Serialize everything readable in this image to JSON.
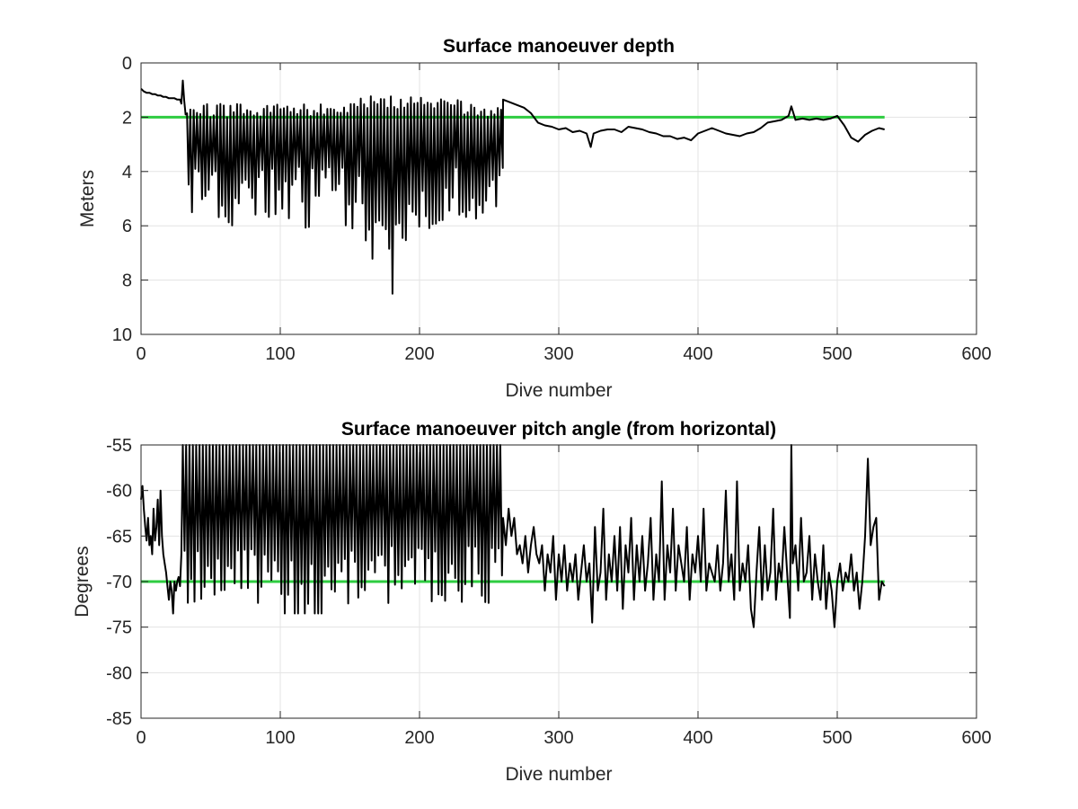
{
  "chart_data": [
    {
      "type": "line",
      "title": "Surface manoeuver depth",
      "xlabel": "Dive number",
      "ylabel": "Meters",
      "xlim": [
        0,
        600
      ],
      "ylim": [
        0,
        10
      ],
      "y_reversed": true,
      "grid": true,
      "x_ticks": [
        "0",
        "100",
        "200",
        "300",
        "400",
        "500",
        "600"
      ],
      "y_ticks": [
        "0",
        "2",
        "4",
        "6",
        "8",
        "10"
      ],
      "reference_line": {
        "y": 2,
        "color": "#2ecc40"
      },
      "series_color": "#000000",
      "segments": [
        {
          "x": [
            0,
            2,
            4,
            6,
            8,
            10,
            12,
            14,
            16,
            18,
            20,
            22,
            24,
            26,
            28,
            29,
            30,
            31,
            32
          ],
          "y": [
            0.95,
            1.05,
            1.1,
            1.1,
            1.15,
            1.15,
            1.2,
            1.2,
            1.25,
            1.25,
            1.3,
            1.3,
            1.3,
            1.35,
            1.35,
            1.5,
            0.65,
            1.4,
            1.9
          ]
        },
        {
          "x_start": 33,
          "x_end": 259,
          "period": 2.4,
          "mode": "oscillation",
          "top_base": 1.65,
          "bottom_base": 3.8,
          "notes": "dense alternating oscillation between ~1.5 m and 3.5–8.5 m; deepest near dive 179 (~8.5 m)"
        },
        {
          "x": [
            260,
            265,
            270,
            275,
            280,
            285,
            290,
            295,
            300,
            305,
            310,
            315,
            320,
            323,
            325,
            330,
            335,
            340,
            345,
            350,
            355,
            360,
            365,
            370,
            375,
            380,
            385,
            390,
            395,
            400,
            405,
            410,
            415,
            420,
            425,
            430,
            435,
            440,
            445,
            450,
            455,
            460,
            465,
            467,
            470,
            475,
            480,
            485,
            490,
            495,
            500,
            505,
            510,
            515,
            520,
            525,
            530,
            534
          ],
          "y": [
            1.35,
            1.45,
            1.55,
            1.65,
            1.85,
            2.2,
            2.3,
            2.35,
            2.45,
            2.4,
            2.55,
            2.5,
            2.6,
            3.1,
            2.6,
            2.5,
            2.45,
            2.45,
            2.55,
            2.35,
            2.4,
            2.45,
            2.55,
            2.6,
            2.7,
            2.7,
            2.8,
            2.75,
            2.85,
            2.6,
            2.5,
            2.4,
            2.5,
            2.6,
            2.65,
            2.7,
            2.6,
            2.55,
            2.4,
            2.2,
            2.15,
            2.1,
            1.95,
            1.6,
            2.1,
            2.05,
            2.1,
            2.05,
            2.1,
            2.05,
            1.95,
            2.3,
            2.75,
            2.9,
            2.65,
            2.5,
            2.4,
            2.45
          ]
        }
      ]
    },
    {
      "type": "line",
      "title": "Surface manoeuver pitch angle (from horizontal)",
      "xlabel": "Dive number",
      "ylabel": "Degrees",
      "xlim": [
        0,
        600
      ],
      "ylim": [
        -85,
        -55
      ],
      "grid": true,
      "x_ticks": [
        "0",
        "100",
        "200",
        "300",
        "400",
        "500",
        "600"
      ],
      "y_ticks": [
        "-55",
        "-60",
        "-65",
        "-70",
        "-75",
        "-80",
        "-85"
      ],
      "reference_line": {
        "y": -70,
        "color": "#2ecc40"
      },
      "series_color": "#000000",
      "segments": [
        {
          "x": [
            0,
            1,
            2,
            3,
            4,
            5,
            6,
            7,
            8,
            9,
            10,
            11,
            12,
            13,
            14,
            15,
            16,
            17,
            18,
            19,
            20,
            21,
            22,
            23,
            24,
            25,
            26,
            27,
            28,
            29
          ],
          "y": [
            -61,
            -59.5,
            -62,
            -64,
            -65.5,
            -63,
            -66,
            -65,
            -67,
            -62,
            -65.5,
            -64,
            -61,
            -66,
            -60,
            -65,
            -67,
            -68,
            -69,
            -70.5,
            -72,
            -70,
            -71,
            -73.5,
            -70,
            -71,
            -70,
            -69.5,
            -70.5,
            -67
          ]
        },
        {
          "x_start": 30,
          "x_end": 259,
          "period": 2.4,
          "mode": "oscillation",
          "top_base": -55,
          "bottom_base": -66,
          "notes": "dense alternating oscillation clipped at -55 (top of axis) with troughs between -60 and -73.5"
        },
        {
          "x": [
            260,
            262,
            264,
            266,
            268,
            270,
            272,
            274,
            276,
            278,
            280,
            282,
            284,
            286,
            288,
            290,
            292,
            294,
            296,
            298,
            300,
            302,
            304,
            306,
            308,
            310,
            312,
            314,
            316,
            318,
            320,
            322,
            324,
            326,
            328,
            330,
            332,
            334,
            336,
            338,
            340,
            342,
            344,
            346,
            348,
            350,
            352,
            354,
            356,
            358,
            360,
            362,
            364,
            366,
            368,
            370,
            372,
            374,
            376,
            378,
            380,
            382,
            384,
            386,
            388,
            390,
            392,
            394,
            396,
            398,
            400,
            402,
            404,
            406,
            408,
            410,
            412,
            414,
            416,
            418,
            420,
            422,
            424,
            426,
            428,
            430,
            432,
            434,
            436,
            438,
            440,
            442,
            444,
            446,
            448,
            450,
            452,
            454,
            456,
            458,
            460,
            462,
            464,
            466,
            467,
            468,
            470,
            472,
            474,
            476,
            478,
            480,
            482,
            484,
            486,
            488,
            490,
            492,
            494,
            496,
            498,
            500,
            502,
            504,
            506,
            508,
            510,
            512,
            514,
            516,
            518,
            520,
            522,
            524,
            526,
            528,
            530,
            532,
            534
          ],
          "y": [
            -63,
            -66,
            -62,
            -65,
            -63,
            -67,
            -66,
            -68,
            -65,
            -69,
            -66,
            -64,
            -67,
            -68,
            -66,
            -71,
            -67,
            -69,
            -65,
            -72,
            -67,
            -70,
            -66,
            -71,
            -68,
            -70,
            -67,
            -72,
            -69,
            -66,
            -70,
            -68,
            -74.5,
            -64,
            -71,
            -69,
            -62,
            -72,
            -67,
            -70,
            -65,
            -71,
            -64,
            -73,
            -66,
            -69,
            -63,
            -72,
            -66,
            -70,
            -65,
            -71,
            -68,
            -63,
            -72,
            -67,
            -70,
            -59,
            -72,
            -66,
            -69,
            -62,
            -71,
            -66,
            -68,
            -70,
            -64,
            -72,
            -67,
            -69,
            -65,
            -70,
            -62,
            -71,
            -68,
            -69,
            -70,
            -66,
            -71,
            -68,
            -60,
            -70,
            -67,
            -72,
            -59,
            -71,
            -68,
            -70,
            -66,
            -73,
            -75,
            -69,
            -64,
            -72,
            -66,
            -71,
            -69,
            -62,
            -72,
            -68,
            -70,
            -64,
            -69,
            -74,
            -55,
            -68,
            -66,
            -71,
            -63,
            -70,
            -69,
            -65,
            -72,
            -67,
            -70,
            -72,
            -66,
            -73,
            -69,
            -71,
            -75,
            -70,
            -68,
            -71,
            -69,
            -70,
            -67,
            -71,
            -69,
            -73,
            -70,
            -65,
            -56.5,
            -66,
            -64,
            -63,
            -72,
            -70,
            -70.5
          ]
        }
      ]
    }
  ]
}
